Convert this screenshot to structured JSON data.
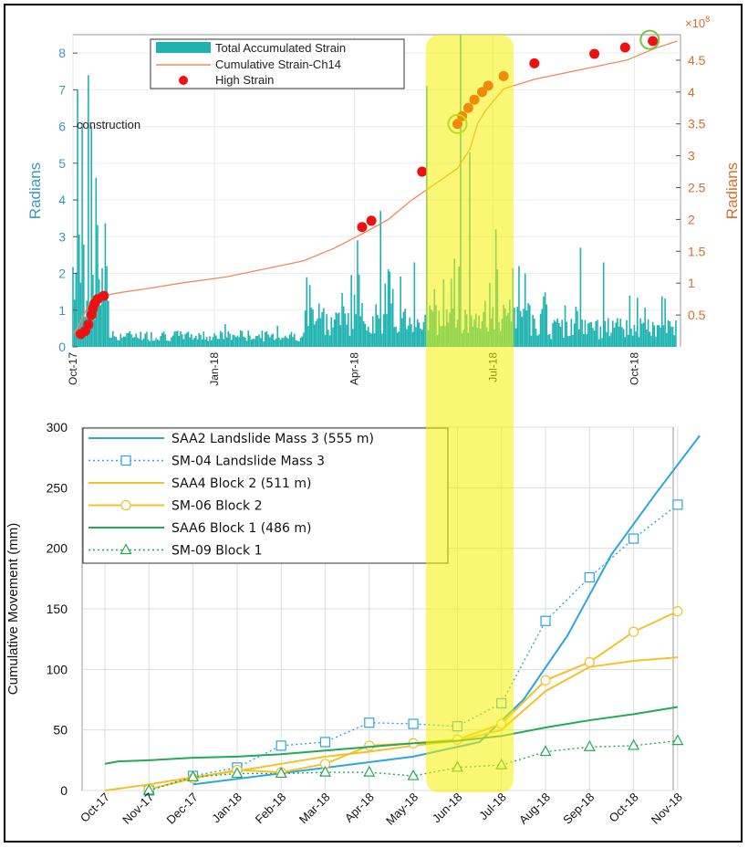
{
  "chart_data": [
    {
      "type": "bar",
      "left_ylabel": "Radians",
      "right_ylabel": "Radians",
      "right_scale_label": "×10",
      "right_scale_exponent": "8",
      "left_ylim": [
        0,
        8.5
      ],
      "left_yticks": [
        "0",
        "1",
        "2",
        "3",
        "4",
        "5",
        "6",
        "7",
        "8"
      ],
      "right_ylim": [
        0,
        4.9
      ],
      "right_yticks": [
        "0.5",
        "1",
        "1.5",
        "2",
        "2.5",
        "3",
        "3.5",
        "4",
        "4.5"
      ],
      "xticks": [
        "Oct-17",
        "Jan-18",
        "Apr-18",
        "Jul-18",
        "Oct-18"
      ],
      "annotation": "construction",
      "legend": [
        "Total Accumulated Strain",
        "Cumulative Strain-Ch14",
        "High Strain"
      ],
      "colors": {
        "bars": "#1fb3b0",
        "line": "#f08a5d",
        "points": "#ee1111",
        "circles": "#7cc242",
        "left_axis": "#3b97c9",
        "right_axis": "#e06a2c"
      },
      "cumulative_strain_x": [
        0,
        3,
        6,
        9,
        12,
        16,
        20,
        30,
        50,
        70,
        100,
        120,
        150,
        170,
        190,
        205,
        220,
        232,
        250,
        258,
        263,
        268,
        273,
        280,
        300,
        330,
        360,
        380,
        393
      ],
      "cumulative_strain_y": [
        0.2,
        0.3,
        0.45,
        0.6,
        0.7,
        0.78,
        0.8,
        0.85,
        0.92,
        1.0,
        1.1,
        1.2,
        1.35,
        1.55,
        1.8,
        2.0,
        2.3,
        2.5,
        2.8,
        3.1,
        3.5,
        3.7,
        3.85,
        4.05,
        4.2,
        4.35,
        4.5,
        4.7,
        4.8
      ],
      "high_strain_x": [
        5,
        8,
        10,
        12,
        13,
        14,
        16,
        20,
        188,
        194,
        227,
        250,
        253,
        257,
        261,
        266,
        270,
        280,
        300,
        339,
        359,
        377
      ],
      "high_strain_y": [
        0.2,
        0.25,
        0.35,
        0.5,
        0.6,
        0.68,
        0.75,
        0.8,
        1.88,
        1.98,
        2.75,
        3.5,
        3.62,
        3.75,
        3.88,
        4.0,
        4.1,
        4.25,
        4.45,
        4.6,
        4.7,
        4.8
      ],
      "highlight_circles_x": [
        250,
        375
      ],
      "highlight_circles_y": [
        3.5,
        4.82
      ],
      "strain_bars_peak_x": [
        3,
        6,
        10,
        12,
        15,
        22,
        185,
        200,
        222,
        230,
        248,
        252,
        258,
        275,
        290,
        330,
        345,
        362
      ],
      "strain_bars_peak_y": [
        7.0,
        6.1,
        7.4,
        6.0,
        4.6,
        2.2,
        2.9,
        3.7,
        2.3,
        7.1,
        2.4,
        8.5,
        5.3,
        3.2,
        2.2,
        2.7,
        2.3,
        1.4
      ]
    },
    {
      "type": "line",
      "ylabel": "Cumulative Movement (mm)",
      "ylim": [
        0,
        300
      ],
      "yticks": [
        "0",
        "50",
        "100",
        "150",
        "200",
        "250",
        "300"
      ],
      "categories": [
        "Oct-17",
        "Nov-17",
        "Dec-17",
        "Jan-18",
        "Feb-18",
        "Mar-18",
        "Apr-18",
        "May-18",
        "Jun-18",
        "Jul-18",
        "Aug-18",
        "Sep-18",
        "Oct-18",
        "Nov-18"
      ],
      "series": [
        {
          "name": "SAA2 Landslide Mass 3 (555 m)",
          "color": "#2aa6e0",
          "dashed": false,
          "marker": "none",
          "x": [
            2.0,
            7.0,
            8.5,
            9.5,
            10.5,
            11.5,
            12.5,
            13.5
          ],
          "y": [
            5,
            28,
            40,
            75,
            128,
            195,
            245,
            293
          ]
        },
        {
          "name": "SM-04 Landslide Mass 3",
          "color": "#2aa6e0",
          "dashed": true,
          "marker": "square",
          "x": [
            1,
            2,
            3,
            4,
            5,
            6,
            7,
            8,
            9,
            10,
            11,
            12,
            13
          ],
          "y": [
            0,
            12,
            19,
            37,
            40,
            56,
            55,
            53,
            72,
            140,
            176,
            208,
            236
          ]
        },
        {
          "name": "SAA4 Block 2 (511 m)",
          "color": "#f5c02a",
          "dashed": false,
          "marker": "none",
          "x": [
            0.0,
            1,
            2,
            3,
            4,
            5,
            6,
            7,
            8,
            9,
            10,
            11,
            12,
            13
          ],
          "y": [
            0,
            5,
            11,
            16,
            22,
            28,
            32,
            37,
            41,
            50,
            82,
            102,
            107,
            110
          ]
        },
        {
          "name": "SM-06 Block 2",
          "color": "#f5c02a",
          "dashed": false,
          "marker": "circle",
          "x": [
            1,
            2,
            3,
            4,
            5,
            6,
            7,
            8,
            9,
            10,
            11,
            12,
            13
          ],
          "y": [
            1,
            10,
            17,
            15,
            22,
            37,
            39,
            42,
            55,
            91,
            106,
            131,
            148
          ]
        },
        {
          "name": "SAA6 Block 1 (486 m)",
          "color": "#22aa55",
          "dashed": false,
          "marker": "none",
          "x": [
            0.0,
            0.3,
            1,
            2,
            3,
            4,
            5,
            6,
            7,
            8,
            9,
            10,
            11,
            12,
            13
          ],
          "y": [
            22,
            24,
            25,
            27,
            28,
            30,
            33,
            36,
            39,
            41,
            45,
            52,
            58,
            63,
            69
          ]
        },
        {
          "name": "SM-09 Block 1",
          "color": "#22aa55",
          "dashed": true,
          "marker": "triangle",
          "x": [
            1,
            2,
            3,
            4,
            5,
            6,
            7,
            8,
            9,
            10,
            11,
            12,
            13
          ],
          "y": [
            0,
            11,
            14,
            14,
            15,
            15,
            12,
            19,
            21,
            32,
            36,
            37,
            41
          ]
        }
      ],
      "grid": true,
      "legend_placement": "top-left"
    }
  ],
  "highlight_band": {
    "color": "#f4f000",
    "opacity": 0.55
  }
}
